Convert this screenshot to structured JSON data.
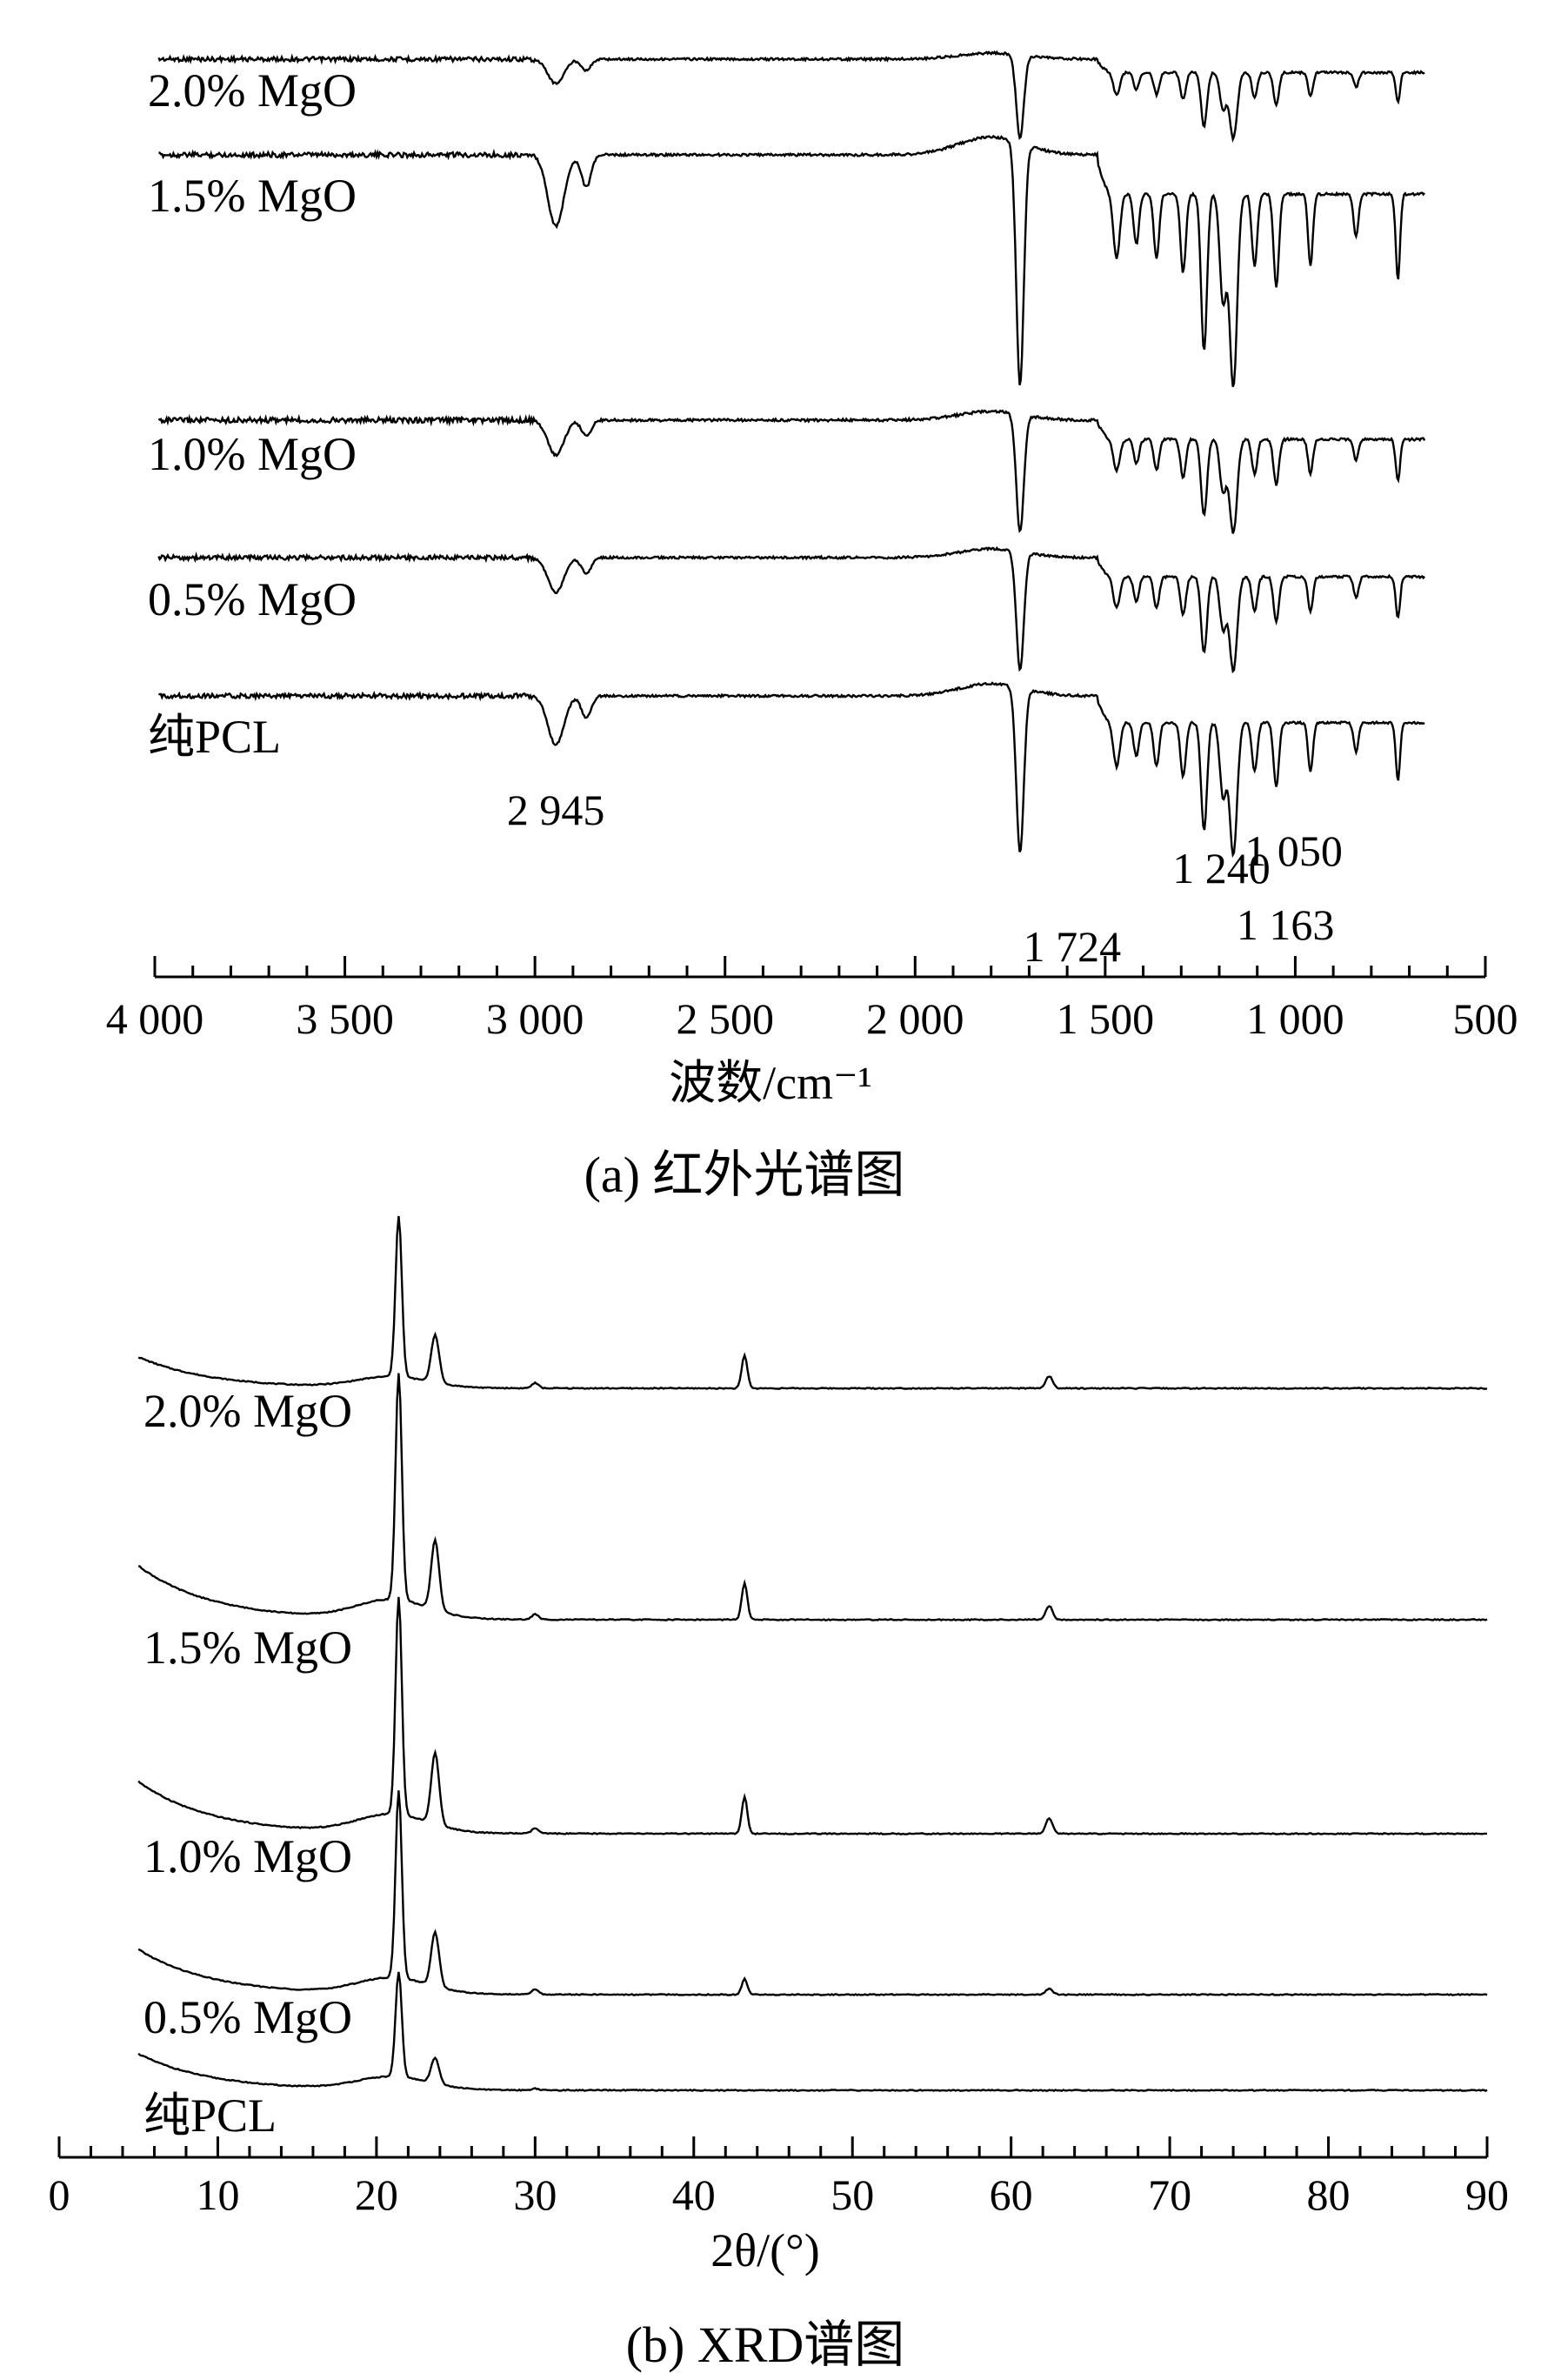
{
  "chart_data": [
    {
      "type": "line",
      "panel": "(a)",
      "caption": "(a) 红外光谱图",
      "xlabel": "波数/cm⁻¹",
      "ylabel": "",
      "xlim": [
        4000,
        500
      ],
      "x_reversed": true,
      "x_ticks": [
        4000,
        3500,
        3000,
        2500,
        2000,
        1500,
        1000,
        500
      ],
      "x_tick_labels": [
        "4 000",
        "3 500",
        "3 000",
        "2 500",
        "2 000",
        "1 500",
        "1 000",
        "500"
      ],
      "grid": false,
      "y_axis_shown": false,
      "series": [
        {
          "name": "2.0% MgO",
          "label_text": "2.0% MgO"
        },
        {
          "name": "1.5% MgO",
          "label_text": "1.5% MgO"
        },
        {
          "name": "1.0% MgO",
          "label_text": "1.0% MgO"
        },
        {
          "name": "0.5% MgO",
          "label_text": "0.5% MgO"
        },
        {
          "name": "纯PCL",
          "label_text": "纯PCL"
        }
      ],
      "annotations": [
        {
          "text": "2 945",
          "x": 2945
        },
        {
          "text": "1 724",
          "x": 1724
        },
        {
          "text": "1 240",
          "x": 1240
        },
        {
          "text": "1 163",
          "x": 1163
        },
        {
          "text": "1 050",
          "x": 1050
        }
      ]
    },
    {
      "type": "line",
      "panel": "(b)",
      "caption": "(b) XRD谱图",
      "xlabel": "2θ/(°)",
      "ylabel": "",
      "xlim": [
        0,
        90
      ],
      "x_ticks": [
        0,
        10,
        20,
        30,
        40,
        50,
        60,
        70,
        80,
        90
      ],
      "x_tick_labels": [
        "0",
        "10",
        "20",
        "30",
        "40",
        "50",
        "60",
        "70",
        "80",
        "90"
      ],
      "grid": false,
      "y_axis_shown": false,
      "peak_positions": [
        21.4,
        23.7,
        30.0,
        43.2,
        62.4
      ],
      "series": [
        {
          "name": "2.0% MgO",
          "label_text": "2.0% MgO"
        },
        {
          "name": "1.5% MgO",
          "label_text": "1.5% MgO"
        },
        {
          "name": "1.0% MgO",
          "label_text": "1.0% MgO"
        },
        {
          "name": "0.5% MgO",
          "label_text": "0.5% MgO"
        },
        {
          "name": "纯PCL",
          "label_text": "纯PCL"
        }
      ]
    }
  ]
}
